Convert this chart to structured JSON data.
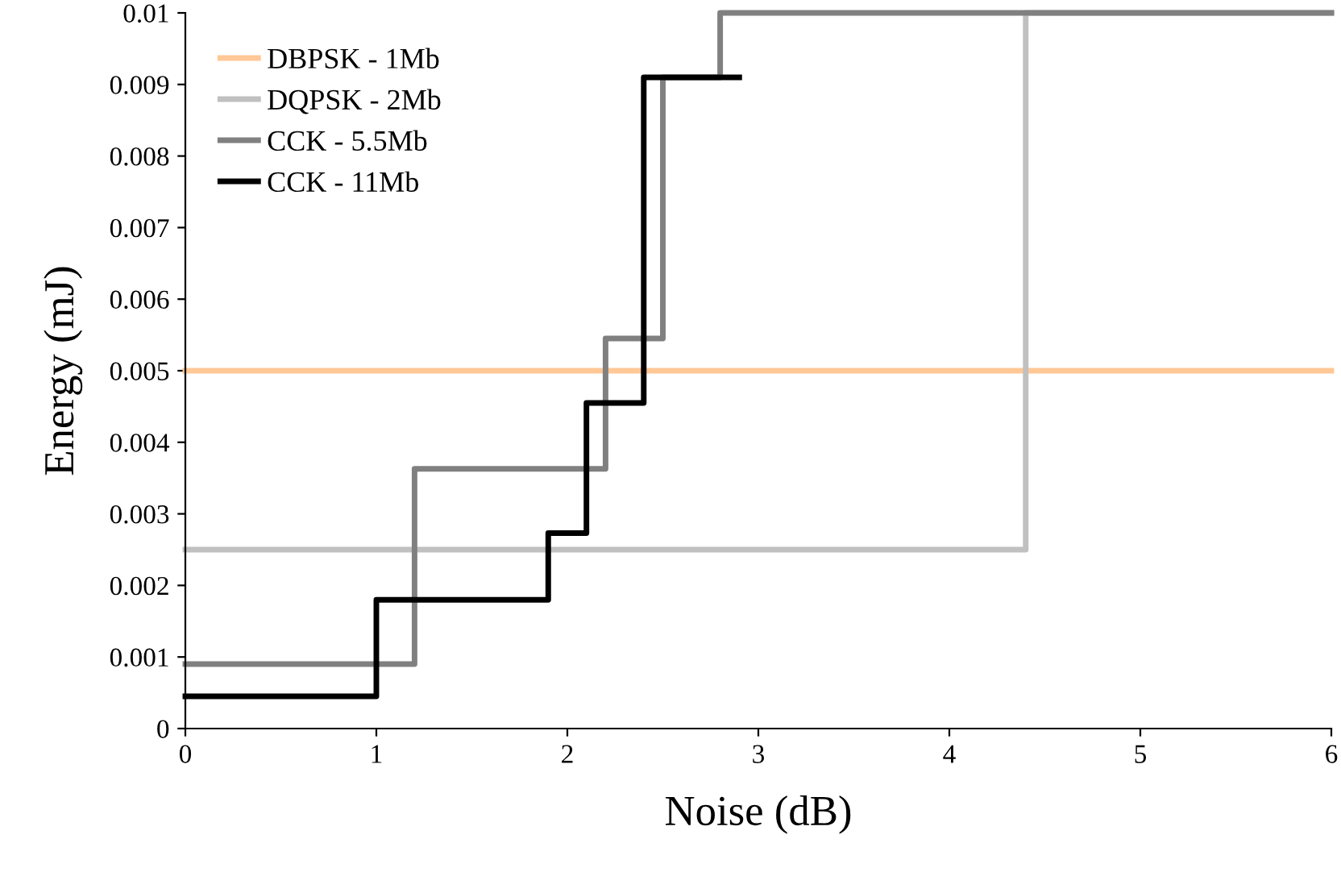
{
  "chart_data": {
    "type": "step",
    "xlabel": "Noise (dB)",
    "ylabel": "Energy (mJ)",
    "xlim": [
      0,
      6
    ],
    "xticks": [
      0,
      1,
      2,
      3,
      4,
      5,
      6
    ],
    "ylim": [
      0,
      0.01
    ],
    "yticks": [
      0,
      0.001,
      0.002,
      0.003,
      0.004,
      0.005,
      0.006,
      0.007,
      0.008,
      0.009,
      0.01
    ],
    "grid": false,
    "legend": "top left",
    "marker": "none",
    "line_style": "solid",
    "series": [
      {
        "name": "DBPSK - 1Mb",
        "color": "#ffc896",
        "x": [
          0,
          6
        ],
        "values": [
          0.005,
          0.005
        ]
      },
      {
        "name": "DQPSK - 2Mb",
        "color": "#c0c0c0",
        "x": [
          0,
          4.4,
          6
        ],
        "values": [
          0.0025,
          0.01,
          0.01
        ]
      },
      {
        "name": "CCK - 5.5Mb",
        "color": "#808080",
        "x": [
          0,
          1.2,
          2.2,
          2.5,
          2.8,
          6
        ],
        "values": [
          0.0009,
          0.00363,
          0.00545,
          0.0091,
          0.01,
          0.01
        ]
      },
      {
        "name": "CCK - 11Mb",
        "color": "#000000",
        "x": [
          0,
          1.0,
          1.9,
          2.1,
          2.4,
          2.9
        ],
        "values": [
          0.00045,
          0.0018,
          0.00273,
          0.00455,
          0.0091,
          0.0091
        ]
      }
    ]
  }
}
